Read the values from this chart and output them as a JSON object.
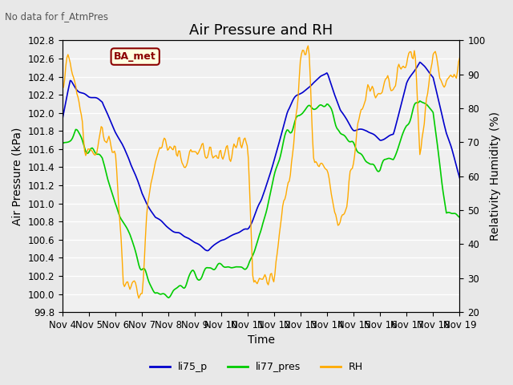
{
  "title": "Air Pressure and RH",
  "subtitle": "No data for f_AtmPres",
  "xlabel": "Time",
  "ylabel_left": "Air Pressure (kPa)",
  "ylabel_right": "Relativity Humidity (%)",
  "ylim_left": [
    99.8,
    102.8
  ],
  "ylim_right": [
    20,
    100
  ],
  "yticks_left": [
    99.8,
    100.0,
    100.2,
    100.4,
    100.6,
    100.8,
    101.0,
    101.2,
    101.4,
    101.6,
    101.8,
    102.0,
    102.2,
    102.4,
    102.6,
    102.8
  ],
  "yticks_right": [
    20,
    30,
    40,
    50,
    60,
    70,
    80,
    90,
    100
  ],
  "xtick_labels": [
    "Nov 4",
    "Nov 5",
    "Nov 6",
    "Nov 7",
    "Nov 8",
    "Nov 9",
    "Nov 10",
    "Nov 11",
    "Nov 12",
    "Nov 13",
    "Nov 14",
    "Nov 15",
    "Nov 16",
    "Nov 17",
    "Nov 18",
    "Nov 19"
  ],
  "n_points": 360,
  "color_li75": "#0000cc",
  "color_li77": "#00cc00",
  "color_rh": "#ffaa00",
  "legend_labels": [
    "li75_p",
    "li77_pres",
    "RH"
  ],
  "annotation_text": "BA_met",
  "bg_color": "#e8e8e8",
  "plot_bg": "#f0f0f0",
  "grid_color": "#ffffff",
  "title_fontsize": 13,
  "label_fontsize": 10,
  "tick_fontsize": 8.5
}
